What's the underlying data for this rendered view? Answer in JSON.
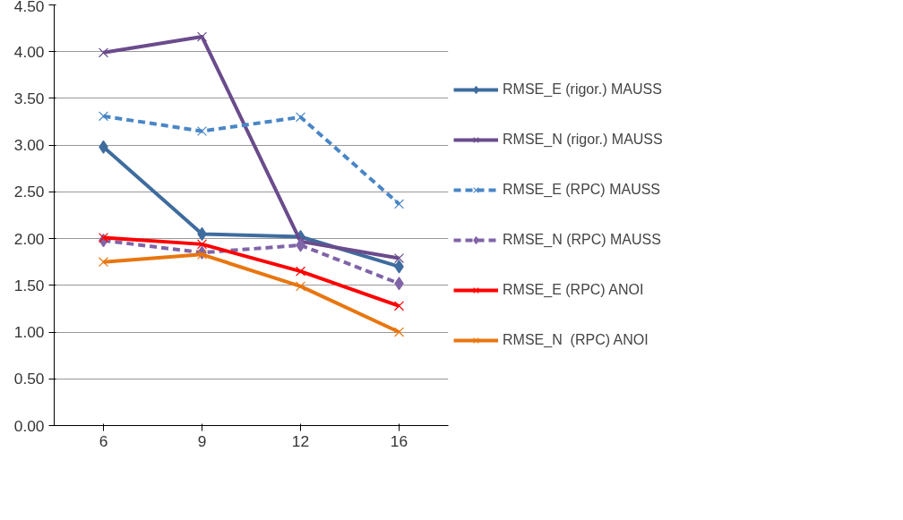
{
  "chart_data": {
    "type": "line",
    "categories": [
      "6",
      "9",
      "12",
      "16"
    ],
    "ylim": [
      0,
      4.5
    ],
    "yticks": [
      {
        "value": 0,
        "label": "0.00"
      },
      {
        "value": 0.5,
        "label": "0.50"
      },
      {
        "value": 1,
        "label": "1.00"
      },
      {
        "value": 1.5,
        "label": "1.50"
      },
      {
        "value": 2,
        "label": "2.00"
      },
      {
        "value": 2.5,
        "label": "2.50"
      },
      {
        "value": 3,
        "label": "3.00"
      },
      {
        "value": 3.5,
        "label": "3.50"
      },
      {
        "value": 4,
        "label": "4.00"
      },
      {
        "value": 4.5,
        "label": "4.50"
      }
    ],
    "grid": "y",
    "legend": "right",
    "series": [
      {
        "name": "RMSE_E (rigor.) MAUSS",
        "color": "#3e6c9e",
        "marker": "diamond",
        "line_style": "solid",
        "values": [
          2.98,
          2.05,
          2.02,
          1.7
        ]
      },
      {
        "name": "RMSE_N (rigor.) MAUSS",
        "color": "#6a4c8c",
        "marker": "cross",
        "line_style": "solid",
        "values": [
          3.99,
          4.16,
          1.97,
          1.79
        ]
      },
      {
        "name": "RMSE_E (RPC) MAUSS",
        "color": "#4a86c6",
        "marker": "cross",
        "line_style": "dashed",
        "values": [
          3.31,
          3.15,
          3.3,
          2.37
        ]
      },
      {
        "name": "RMSE_N (RPC) MAUSS",
        "color": "#8064a8",
        "marker": "diamond",
        "line_style": "dashed",
        "values": [
          1.98,
          1.85,
          1.93,
          1.52
        ]
      },
      {
        "name": "RMSE_E (RPC) ANOI",
        "color": "#ff0000",
        "marker": "cross",
        "line_style": "solid",
        "values": [
          2.01,
          1.94,
          1.65,
          1.28
        ]
      },
      {
        "name": "RMSE_N  (RPC) ANOI",
        "color": "#e8760f",
        "marker": "cross",
        "line_style": "solid",
        "values": [
          1.75,
          1.83,
          1.49,
          1.0
        ]
      }
    ]
  }
}
